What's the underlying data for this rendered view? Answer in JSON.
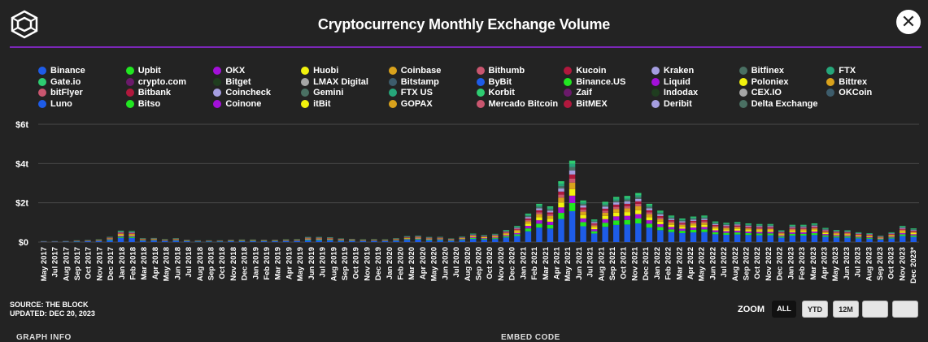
{
  "header": {
    "title": "Cryptocurrency Monthly Exchange Volume",
    "close_label": "✕"
  },
  "footer": {
    "source": "SOURCE: THE BLOCK",
    "updated": "UPDATED: DEC 20, 2023",
    "partial_left": "GRAPH INFO",
    "partial_right": "EMBED CODE"
  },
  "zoom": {
    "label": "ZOOM",
    "buttons": [
      "ALL",
      "YTD",
      "12M",
      "",
      ""
    ],
    "active": "ALL"
  },
  "colors": {
    "background": "#232323",
    "accent": "#7b27b8"
  },
  "chart_data": {
    "type": "bar",
    "stacked": true,
    "title": "Cryptocurrency Monthly Exchange Volume",
    "ylim": [
      0,
      6
    ],
    "yticks": [
      "$0",
      "$2t",
      "$4t",
      "$6t"
    ],
    "y_unit": "trillion USD",
    "grid": true,
    "legend_position": "top",
    "legend": [
      {
        "name": "Binance",
        "color": "#1e5ce8"
      },
      {
        "name": "Upbit",
        "color": "#21e621"
      },
      {
        "name": "OKX",
        "color": "#a310d9"
      },
      {
        "name": "Huobi",
        "color": "#f2f20d"
      },
      {
        "name": "Coinbase",
        "color": "#d9a21c"
      },
      {
        "name": "Bithumb",
        "color": "#c9566f"
      },
      {
        "name": "Kucoin",
        "color": "#b0183d"
      },
      {
        "name": "Kraken",
        "color": "#a59ee0"
      },
      {
        "name": "Bitfinex",
        "color": "#4a7063"
      },
      {
        "name": "FTX",
        "color": "#26a67a"
      },
      {
        "name": "Gate.io",
        "color": "#2ecc71"
      },
      {
        "name": "crypto.com",
        "color": "#6b1a6b"
      },
      {
        "name": "Bitget",
        "color": "#1f3d1f"
      },
      {
        "name": "LMAX Digital",
        "color": "#a6a6a6"
      },
      {
        "name": "Bitstamp",
        "color": "#3d5c6b"
      },
      {
        "name": "ByBit",
        "color": "#1e5ce8"
      },
      {
        "name": "Binance.US",
        "color": "#21e621"
      },
      {
        "name": "Liquid",
        "color": "#a310d9"
      },
      {
        "name": "Poloniex",
        "color": "#f2f20d"
      },
      {
        "name": "Bittrex",
        "color": "#d9a21c"
      },
      {
        "name": "bitFlyer",
        "color": "#c9566f"
      },
      {
        "name": "Bitbank",
        "color": "#b0183d"
      },
      {
        "name": "Coincheck",
        "color": "#a59ee0"
      },
      {
        "name": "Gemini",
        "color": "#4a7063"
      },
      {
        "name": "FTX US",
        "color": "#26a67a"
      },
      {
        "name": "Korbit",
        "color": "#2ecc71"
      },
      {
        "name": "Zaif",
        "color": "#6b1a6b"
      },
      {
        "name": "Indodax",
        "color": "#1f3d1f"
      },
      {
        "name": "CEX.IO",
        "color": "#a6a6a6"
      },
      {
        "name": "OKCoin",
        "color": "#3d5c6b"
      },
      {
        "name": "Luno",
        "color": "#1e5ce8"
      },
      {
        "name": "Bitso",
        "color": "#21e621"
      },
      {
        "name": "Coinone",
        "color": "#a310d9"
      },
      {
        "name": "itBit",
        "color": "#f2f20d"
      },
      {
        "name": "GOPAX",
        "color": "#d9a21c"
      },
      {
        "name": "Mercado Bitcoin",
        "color": "#c9566f"
      },
      {
        "name": "BitMEX",
        "color": "#b0183d"
      },
      {
        "name": "Deribit",
        "color": "#a59ee0"
      },
      {
        "name": "Delta Exchange",
        "color": "#4a7063"
      }
    ],
    "categories": [
      "May 2017",
      "Jun 2017",
      "Jul 2017",
      "Aug 2017",
      "Sep 2017",
      "Oct 2017",
      "Nov 2017",
      "Dec 2017",
      "Jan 2018",
      "Feb 2018",
      "Mar 2018",
      "Apr 2018",
      "May 2018",
      "Jun 2018",
      "Jul 2018",
      "Aug 2018",
      "Sep 2018",
      "Oct 2018",
      "Nov 2018",
      "Dec 2018",
      "Jan 2019",
      "Feb 2019",
      "Mar 2019",
      "Apr 2019",
      "May 2019",
      "Jun 2019",
      "Jul 2019",
      "Aug 2019",
      "Sep 2019",
      "Oct 2019",
      "Nov 2019",
      "Dec 2019",
      "Jan 2020",
      "Feb 2020",
      "Mar 2020",
      "Apr 2020",
      "May 2020",
      "Jun 2020",
      "Jul 2020",
      "Aug 2020",
      "Sep 2020",
      "Oct 2020",
      "Nov 2020",
      "Dec 2020",
      "Jan 2021",
      "Feb 2021",
      "Mar 2021",
      "Apr 2021",
      "May 2021",
      "Jun 2021",
      "Jul 2021",
      "Aug 2021",
      "Sep 2021",
      "Oct 2021",
      "Nov 2021",
      "Dec 2021",
      "Jan 2022",
      "Feb 2022",
      "Mar 2022",
      "Apr 2022",
      "May 2022",
      "Jun 2022",
      "Jul 2022",
      "Aug 2022",
      "Sep 2022",
      "Oct 2022",
      "Nov 2022",
      "Dec 2022",
      "Jan 2023",
      "Feb 2023",
      "Mar 2023",
      "Apr 2023",
      "May 2023",
      "Jun 2023",
      "Jul 2023",
      "Aug 2023",
      "Sep 2023",
      "Oct 2023",
      "Nov 2023",
      "Dec 2023*"
    ],
    "xtick_labels": [
      "May 2017",
      "Jul 2017",
      "Aug 2017",
      "Sep 2017",
      "Oct 2017",
      "Nov 2017",
      "Dec 2017",
      "Jan 2018",
      "Feb 2018",
      "Mar 2018",
      "Apr 2018",
      "May 2018",
      "Jun 2018",
      "Jul 2018",
      "Aug 2018",
      "Sep 2018",
      "Oct 2018",
      "Nov 2018",
      "Dec 2018",
      "Jan 2019",
      "Feb 2019",
      "Mar 2019",
      "Apr 2019",
      "May 2019",
      "Jun 2019",
      "Jul 2019",
      "Aug 2019",
      "Sep 2019",
      "Oct 2019",
      "Nov 2019",
      "Dec 2019",
      "Jan 2020",
      "Feb 2020",
      "Mar 2020",
      "Apr 2020",
      "May 2020",
      "Jun 2020",
      "Jul 2020",
      "Aug 2020",
      "Sep 2020",
      "Oct 2020",
      "Nov 2020",
      "Dec 2020",
      "Jan 2021",
      "Feb 2021",
      "Mar 2021",
      "Apr 2021",
      "May 2021",
      "Jun 2021",
      "Jul 2021",
      "Aug 2021",
      "Sep 2021",
      "Oct 2021",
      "Nov 2021",
      "Dec 2021",
      "Jan 2022",
      "Feb 2022",
      "Mar 2022",
      "Apr 2022",
      "May 2022",
      "Jun 2022",
      "Jul 2022",
      "Aug 2022",
      "Sep 2022",
      "Oct 2022",
      "Nov 2022",
      "Dec 2022",
      "Jan 2023",
      "Feb 2023",
      "Mar 2023",
      "Apr 2023",
      "May 2023",
      "Jun 2023",
      "Jul 2023",
      "Aug 2023",
      "Sep 2023",
      "Oct 2023",
      "Nov 2023",
      "Dec 2023*"
    ],
    "totals": [
      0.05,
      0.05,
      0.06,
      0.09,
      0.11,
      0.14,
      0.27,
      0.58,
      0.56,
      0.2,
      0.21,
      0.15,
      0.2,
      0.12,
      0.09,
      0.09,
      0.09,
      0.12,
      0.13,
      0.13,
      0.12,
      0.12,
      0.14,
      0.15,
      0.26,
      0.26,
      0.25,
      0.19,
      0.16,
      0.14,
      0.15,
      0.14,
      0.2,
      0.3,
      0.33,
      0.26,
      0.27,
      0.19,
      0.28,
      0.43,
      0.35,
      0.42,
      0.62,
      0.82,
      1.45,
      1.95,
      1.82,
      3.1,
      4.15,
      2.12,
      1.15,
      2.05,
      2.3,
      2.35,
      2.5,
      1.95,
      1.6,
      1.35,
      1.2,
      1.3,
      1.35,
      1.05,
      0.98,
      1.02,
      0.95,
      0.92,
      0.92,
      0.6,
      0.88,
      0.88,
      0.95,
      0.72,
      0.62,
      0.6,
      0.5,
      0.45,
      0.33,
      0.5,
      0.82,
      0.7
    ],
    "stack_fractions": [
      {
        "name": "Binance",
        "fraction": 0.38
      },
      {
        "name": "Upbit",
        "fraction": 0.1
      },
      {
        "name": "OKX",
        "fraction": 0.09
      },
      {
        "name": "Huobi",
        "fraction": 0.08
      },
      {
        "name": "Coinbase",
        "fraction": 0.08
      },
      {
        "name": "Bithumb",
        "fraction": 0.05
      },
      {
        "name": "Kucoin",
        "fraction": 0.05
      },
      {
        "name": "Kraken",
        "fraction": 0.05
      },
      {
        "name": "Bitfinex",
        "fraction": 0.04
      },
      {
        "name": "FTX",
        "fraction": 0.04
      },
      {
        "name": "Gate.io",
        "fraction": 0.04
      }
    ]
  }
}
